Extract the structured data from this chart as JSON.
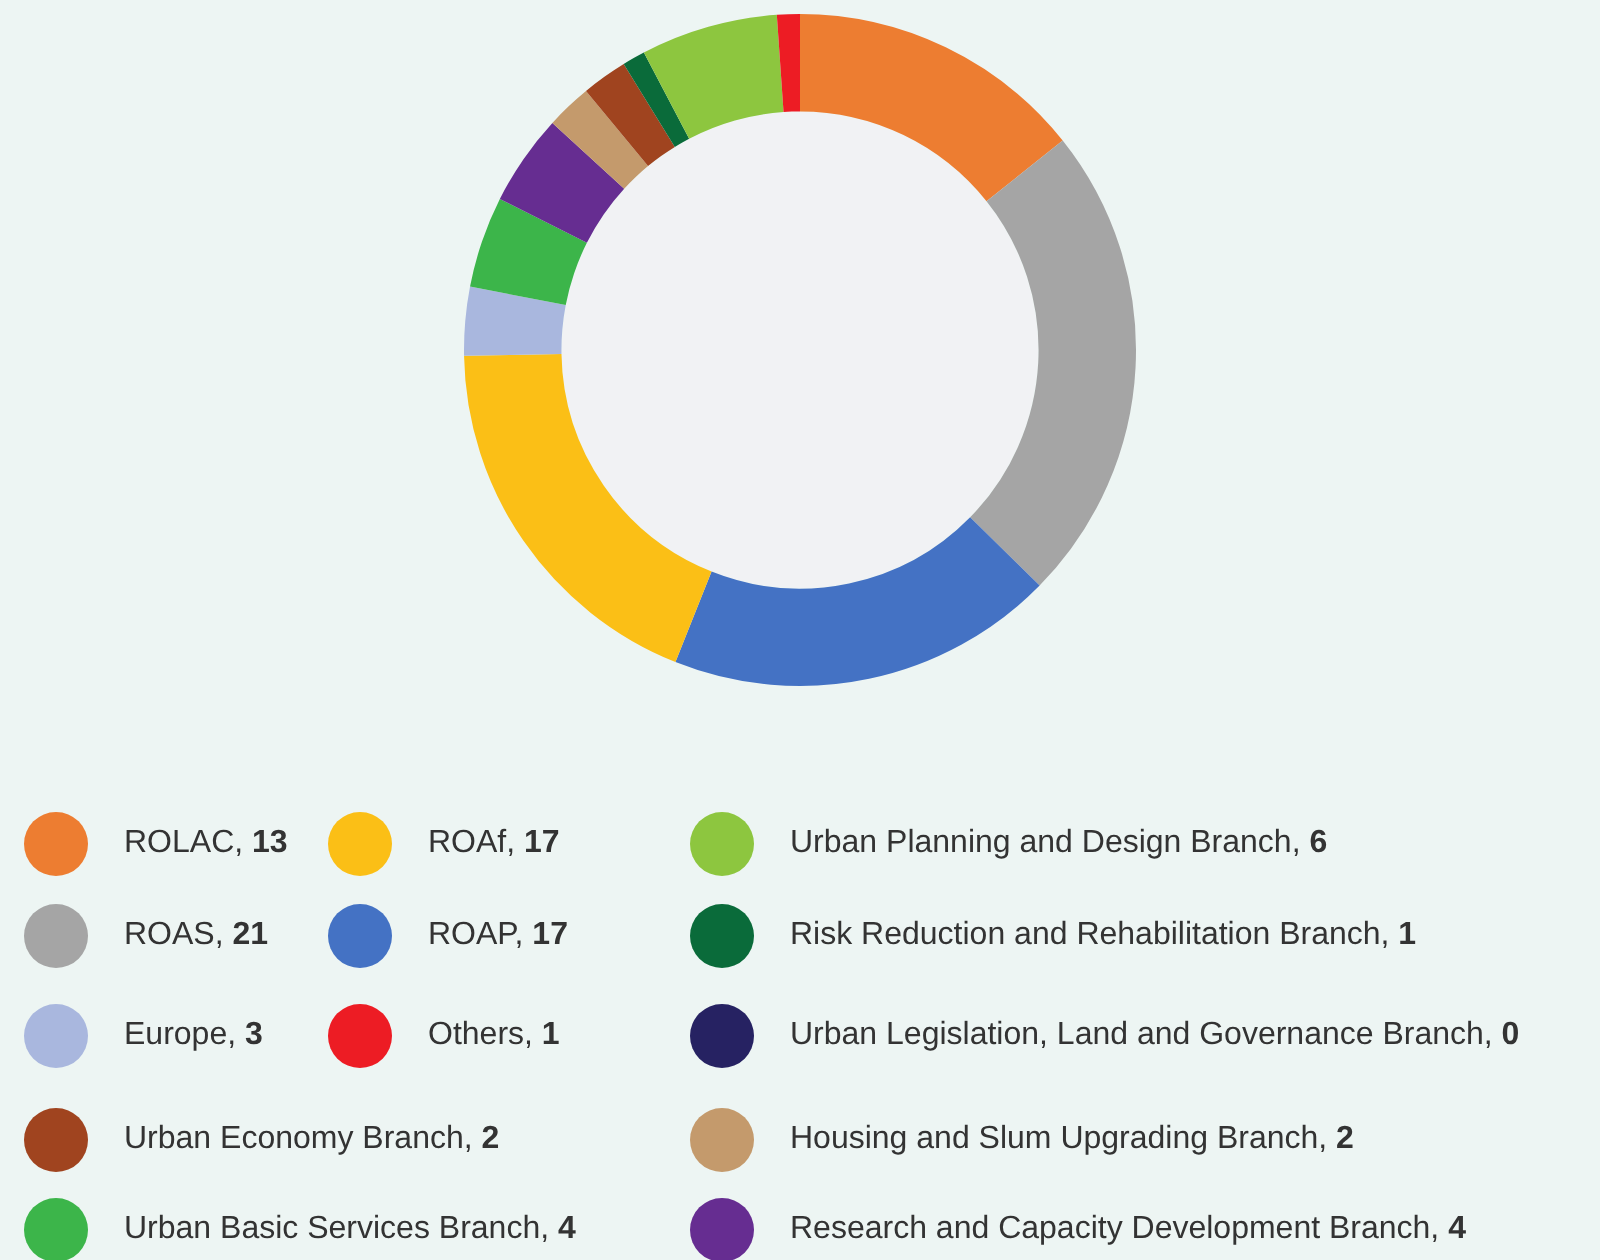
{
  "chart_data": {
    "type": "donut",
    "categories": [
      "ROLAC, 13",
      "ROAS, 21",
      "ROAP, 17",
      "ROAf, 17",
      "Europe, 3",
      "Urban Basic Services Branch, 4",
      "Research and Capacity Development Branch, 4",
      "Housing and Slum Upgrading Branch, 2",
      "Urban Economy Branch, 2",
      "Risk Reduction and Rehabilitation Branch, 1",
      "Urban Planning and Design Branch, 6",
      "Others, 1",
      "Urban Legislation, Land and Governance Branch, 0"
    ],
    "values": [
      13,
      21,
      17,
      17,
      3,
      4,
      4,
      2,
      2,
      1,
      6,
      1,
      0
    ],
    "colors": [
      "#ed7d31",
      "#a5a5a5",
      "#4472c4",
      "#fbbf16",
      "#a9b7de",
      "#3cb54a",
      "#662d91",
      "#c49a6c",
      "#a0441f",
      "#0a6b3a",
      "#8dc63f",
      "#ed1c24",
      "#262262"
    ],
    "legend": "bottom"
  }
}
